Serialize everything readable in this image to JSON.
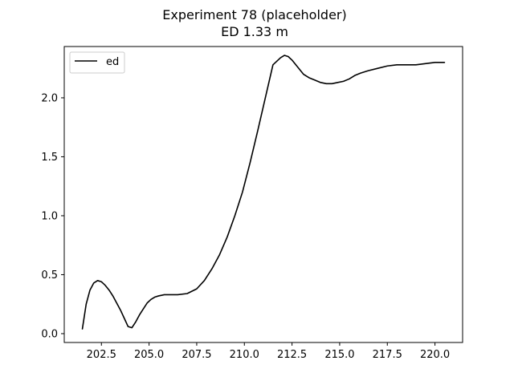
{
  "chart_data": {
    "type": "line",
    "title": "Experiment 78 (placeholder)",
    "subtitle": "ED 1.33 m",
    "xlabel": "",
    "ylabel": "",
    "xlim": [
      200.55,
      221.45
    ],
    "ylim": [
      -0.075,
      2.435
    ],
    "xticks": [
      202.5,
      205.0,
      207.5,
      210.0,
      212.5,
      215.0,
      217.5,
      220.0
    ],
    "xtick_labels": [
      "202.5",
      "205.0",
      "207.5",
      "210.0",
      "212.5",
      "215.0",
      "217.5",
      "220.0"
    ],
    "yticks": [
      0.0,
      0.5,
      1.0,
      1.5,
      2.0
    ],
    "ytick_labels": [
      "0.0",
      "0.5",
      "1.0",
      "1.5",
      "2.0"
    ],
    "grid": false,
    "legend_position": "top-left",
    "series": [
      {
        "name": "ed",
        "color": "#000000",
        "x": [
          201.5,
          201.7,
          201.9,
          202.1,
          202.3,
          202.5,
          202.7,
          202.9,
          203.1,
          203.3,
          203.5,
          203.7,
          203.9,
          204.1,
          204.3,
          204.5,
          204.7,
          204.9,
          205.1,
          205.3,
          205.5,
          205.8,
          206.1,
          206.5,
          207.0,
          207.5,
          207.9,
          208.3,
          208.7,
          209.1,
          209.5,
          209.9,
          210.3,
          210.7,
          211.1,
          211.5,
          211.9,
          212.1,
          212.3,
          212.5,
          212.7,
          212.9,
          213.1,
          213.4,
          213.7,
          214.0,
          214.3,
          214.6,
          214.9,
          215.2,
          215.5,
          215.8,
          216.1,
          216.5,
          217.0,
          217.5,
          218.0,
          218.5,
          219.0,
          219.5,
          220.0,
          220.5
        ],
        "y": [
          0.04,
          0.25,
          0.37,
          0.43,
          0.45,
          0.44,
          0.41,
          0.37,
          0.32,
          0.26,
          0.2,
          0.13,
          0.06,
          0.05,
          0.1,
          0.16,
          0.21,
          0.26,
          0.29,
          0.31,
          0.32,
          0.33,
          0.33,
          0.33,
          0.34,
          0.38,
          0.45,
          0.55,
          0.67,
          0.82,
          1.0,
          1.2,
          1.45,
          1.72,
          2.0,
          2.28,
          2.34,
          2.36,
          2.35,
          2.32,
          2.28,
          2.24,
          2.2,
          2.17,
          2.15,
          2.13,
          2.12,
          2.12,
          2.13,
          2.14,
          2.16,
          2.19,
          2.21,
          2.23,
          2.25,
          2.27,
          2.28,
          2.28,
          2.28,
          2.29,
          2.3,
          2.3
        ]
      }
    ]
  }
}
